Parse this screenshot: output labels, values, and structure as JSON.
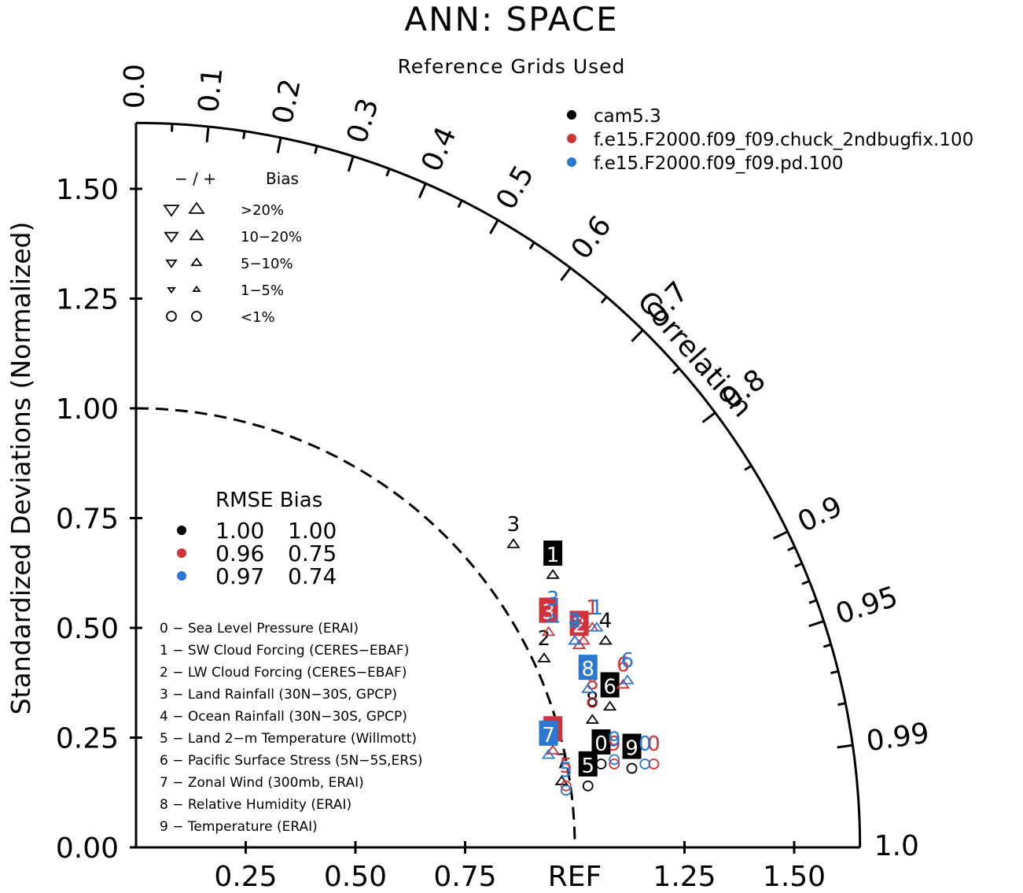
{
  "title": "ANN: SPACE",
  "subtitle": "Reference Grids Used",
  "chart_data": {
    "type": "scatter",
    "diagram": "taylor",
    "y_axis_label": "Standardized Deviations (Normalized)",
    "arc_label": "Correlation",
    "ref_label": "REF",
    "y_ticks": [
      "0.00",
      "0.25",
      "0.50",
      "0.75",
      "1.00",
      "1.25",
      "1.50"
    ],
    "y_tick_values": [
      0,
      0.25,
      0.5,
      0.75,
      1.0,
      1.25,
      1.5
    ],
    "x_ticks": [
      "0.25",
      "0.50",
      "0.75",
      "1.25",
      "1.50"
    ],
    "x_tick_values": [
      0.25,
      0.5,
      0.75,
      1.25,
      1.5
    ],
    "max_std": 1.65,
    "correlation_labels": [
      "0.0",
      "0.1",
      "0.2",
      "0.3",
      "0.4",
      "0.5",
      "0.6",
      "0.7",
      "0.8",
      "0.9",
      "0.95",
      "0.99",
      "1.0"
    ],
    "correlation_values": [
      0.0,
      0.1,
      0.2,
      0.3,
      0.4,
      0.5,
      0.6,
      0.7,
      0.8,
      0.9,
      0.95,
      0.99,
      1.0
    ],
    "reference_arc_std": 1.0,
    "series": [
      {
        "name": "cam5.3",
        "color": "#000000",
        "rmse": "1.00",
        "bias": "1.00"
      },
      {
        "name": "f.e15.F2000.f09_f09.chuck_2ndbugfix.100",
        "color": "#d0343a",
        "rmse": "0.96",
        "bias": "0.75"
      },
      {
        "name": "f.e15.F2000.f09_f09.pd.100",
        "color": "#2a78d1",
        "rmse": "0.97",
        "bias": "0.74"
      }
    ],
    "points": [
      {
        "series": 0,
        "var": "0",
        "x": 1.06,
        "y": 0.19,
        "marker": "circle",
        "label_box": true
      },
      {
        "series": 0,
        "var": "1",
        "x": 0.95,
        "y": 0.62,
        "marker": "up",
        "label_box": true
      },
      {
        "series": 0,
        "var": "2",
        "x": 0.93,
        "y": 0.43,
        "marker": "up",
        "label_box": false
      },
      {
        "series": 0,
        "var": "3",
        "x": 0.86,
        "y": 0.69,
        "marker": "up",
        "label_box": false
      },
      {
        "series": 0,
        "var": "4",
        "x": 1.07,
        "y": 0.47,
        "marker": "up",
        "label_box": false
      },
      {
        "series": 0,
        "var": "5",
        "x": 1.03,
        "y": 0.14,
        "marker": "circle",
        "label_box": true
      },
      {
        "series": 0,
        "var": "6",
        "x": 1.08,
        "y": 0.32,
        "marker": "up",
        "label_box": true
      },
      {
        "series": 0,
        "var": "7",
        "x": 0.97,
        "y": 0.15,
        "marker": "up",
        "label_box": false
      },
      {
        "series": 0,
        "var": "8",
        "x": 1.04,
        "y": 0.29,
        "marker": "up",
        "label_box": false
      },
      {
        "series": 0,
        "var": "9",
        "x": 1.13,
        "y": 0.18,
        "marker": "circle",
        "label_box": true
      },
      {
        "series": 1,
        "var": "0",
        "x": 1.18,
        "y": 0.19,
        "marker": "circle",
        "label_box": false
      },
      {
        "series": 1,
        "var": "1",
        "x": 1.04,
        "y": 0.5,
        "marker": "up",
        "label_box": false
      },
      {
        "series": 1,
        "var": "2",
        "x": 1.01,
        "y": 0.46,
        "marker": "up",
        "label_box": true
      },
      {
        "series": 1,
        "var": "3",
        "x": 0.94,
        "y": 0.49,
        "marker": "up",
        "label_box": true
      },
      {
        "series": 1,
        "var": "4",
        "x": 1.02,
        "y": 0.47,
        "marker": "up",
        "label_box": false
      },
      {
        "series": 1,
        "var": "5",
        "x": 0.98,
        "y": 0.14,
        "marker": "circle",
        "label_box": false
      },
      {
        "series": 1,
        "var": "6",
        "x": 1.11,
        "y": 0.37,
        "marker": "up",
        "label_box": false
      },
      {
        "series": 1,
        "var": "7",
        "x": 0.95,
        "y": 0.22,
        "marker": "up",
        "label_box": true
      },
      {
        "series": 1,
        "var": "8",
        "x": 1.04,
        "y": 0.33,
        "marker": "circle",
        "label_box": false
      },
      {
        "series": 1,
        "var": "9",
        "x": 1.09,
        "y": 0.19,
        "marker": "circle",
        "label_box": false
      },
      {
        "series": 2,
        "var": "0",
        "x": 1.16,
        "y": 0.19,
        "marker": "circle",
        "label_box": false
      },
      {
        "series": 2,
        "var": "1",
        "x": 1.05,
        "y": 0.5,
        "marker": "up",
        "label_box": false
      },
      {
        "series": 2,
        "var": "2",
        "x": 1.0,
        "y": 0.47,
        "marker": "up",
        "label_box": false
      },
      {
        "series": 2,
        "var": "3",
        "x": 0.95,
        "y": 0.52,
        "marker": "up",
        "label_box": false
      },
      {
        "series": 2,
        "var": "4",
        "x": 1.0,
        "y": 0.47,
        "marker": "up",
        "label_box": false
      },
      {
        "series": 2,
        "var": "5",
        "x": 0.98,
        "y": 0.13,
        "marker": "circle",
        "label_box": false
      },
      {
        "series": 2,
        "var": "6",
        "x": 1.12,
        "y": 0.38,
        "marker": "up",
        "label_box": false
      },
      {
        "series": 2,
        "var": "7",
        "x": 0.94,
        "y": 0.21,
        "marker": "up",
        "label_box": true
      },
      {
        "series": 2,
        "var": "8",
        "x": 1.03,
        "y": 0.36,
        "marker": "up",
        "label_box": true
      },
      {
        "series": 2,
        "var": "9",
        "x": 1.09,
        "y": 0.2,
        "marker": "circle",
        "label_box": false
      }
    ],
    "bias_legend": {
      "header_sign": "− / +",
      "header_label": "Bias",
      "rows": [
        {
          "label": ">20%",
          "size": 3
        },
        {
          "label": "10−20%",
          "size": 2
        },
        {
          "label": "5−10%",
          "size": 1
        },
        {
          "label": "1−5%",
          "size": 0
        },
        {
          "label": "<1%",
          "size": -1
        }
      ]
    },
    "stats_legend": {
      "header": "RMSE Bias"
    },
    "variables": [
      "0 − Sea Level Pressure (ERAI)",
      "1 − SW Cloud Forcing (CERES−EBAF)",
      "2 − LW Cloud Forcing (CERES−EBAF)",
      "3 − Land Rainfall (30N−30S, GPCP)",
      "4 − Ocean Rainfall (30N−30S, GPCP)",
      "5 − Land 2−m Temperature (Willmott)",
      "6 − Pacific Surface Stress (5N−5S,ERS)",
      "7 − Zonal Wind (300mb, ERAI)",
      "8 − Relative Humidity (ERAI)",
      "9 − Temperature (ERAI)"
    ]
  }
}
